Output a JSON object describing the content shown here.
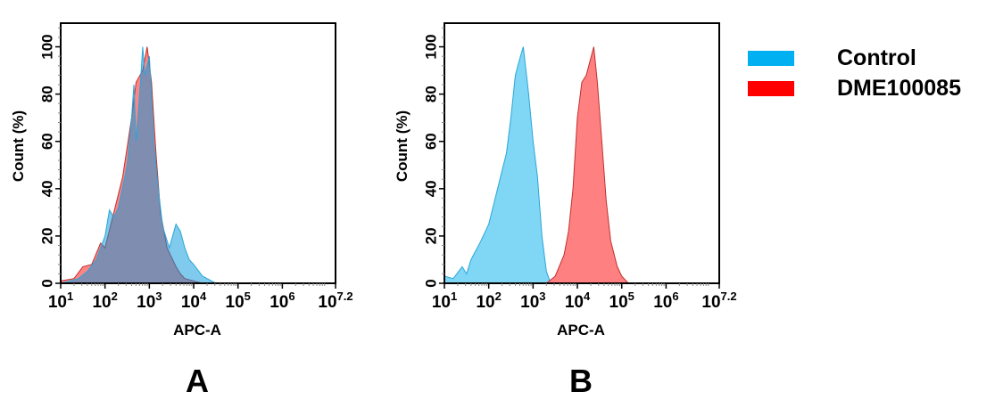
{
  "legend": [
    {
      "label": "Control",
      "color": "#00b0f0"
    },
    {
      "label": "DME100085",
      "color": "#ff0000"
    }
  ],
  "chart_data": [
    {
      "type": "area",
      "panel_label": "A",
      "xlabel": "APC-A",
      "ylabel": "Count  (%)",
      "xscale": "log10",
      "xlim_log10": [
        1,
        7.2
      ],
      "ylim": [
        0,
        110
      ],
      "yticks": [
        "0",
        "20",
        "40",
        "60",
        "80",
        "100"
      ],
      "xticks": [
        {
          "base": "10",
          "exp": "1"
        },
        {
          "base": "10",
          "exp": "2"
        },
        {
          "base": "10",
          "exp": "3"
        },
        {
          "base": "10",
          "exp": "4"
        },
        {
          "base": "10",
          "exp": "5"
        },
        {
          "base": "10",
          "exp": "6"
        },
        {
          "base": "10",
          "exp": "7.2"
        }
      ],
      "series": [
        {
          "name": "DME100085",
          "color": "#ff8080",
          "x_log10": [
            1.0,
            1.3,
            1.5,
            1.7,
            1.9,
            2.0,
            2.2,
            2.4,
            2.6,
            2.7,
            2.85,
            2.95,
            3.05,
            3.15,
            3.25,
            3.4,
            3.6,
            3.7,
            3.8,
            4.0,
            4.2
          ],
          "y": [
            1,
            2,
            7,
            8,
            17,
            15,
            30,
            45,
            70,
            85,
            90,
            100,
            85,
            55,
            30,
            15,
            7,
            4,
            2,
            1,
            0
          ]
        },
        {
          "name": "Control",
          "color": "#00b0f0",
          "x_log10": [
            1.0,
            1.2,
            1.4,
            1.6,
            1.8,
            2.0,
            2.1,
            2.2,
            2.3,
            2.5,
            2.6,
            2.65,
            2.7,
            2.8,
            2.85,
            2.9,
            3.0,
            3.1,
            3.2,
            3.3,
            3.45,
            3.6,
            3.7,
            3.8,
            3.9,
            4.0,
            4.2,
            4.4,
            4.5
          ],
          "y": [
            0,
            1,
            2,
            5,
            10,
            20,
            31,
            28,
            32,
            50,
            70,
            84,
            60,
            85,
            100,
            88,
            96,
            60,
            40,
            24,
            15,
            25,
            22,
            15,
            10,
            8,
            3,
            1,
            0
          ]
        }
      ]
    },
    {
      "type": "area",
      "panel_label": "B",
      "xlabel": "APC-A",
      "ylabel": "Count  (%)",
      "xscale": "log10",
      "xlim_log10": [
        1,
        7.2
      ],
      "ylim": [
        0,
        110
      ],
      "yticks": [
        "0",
        "20",
        "40",
        "60",
        "80",
        "100"
      ],
      "xticks": [
        {
          "base": "10",
          "exp": "1"
        },
        {
          "base": "10",
          "exp": "2"
        },
        {
          "base": "10",
          "exp": "3"
        },
        {
          "base": "10",
          "exp": "4"
        },
        {
          "base": "10",
          "exp": "5"
        },
        {
          "base": "10",
          "exp": "6"
        },
        {
          "base": "10",
          "exp": "7.2"
        }
      ],
      "series": [
        {
          "name": "Control",
          "color": "#00b0f0",
          "x_log10": [
            1.0,
            1.2,
            1.4,
            1.5,
            1.6,
            1.8,
            2.0,
            2.2,
            2.4,
            2.5,
            2.6,
            2.7,
            2.78,
            2.9,
            3.0,
            3.1,
            3.2,
            3.3,
            3.4
          ],
          "y": [
            3,
            2,
            7,
            4,
            10,
            17,
            25,
            40,
            55,
            70,
            88,
            95,
            100,
            80,
            60,
            45,
            20,
            5,
            0
          ]
        },
        {
          "name": "DME100085",
          "color": "#ff8080",
          "x_log10": [
            3.3,
            3.5,
            3.7,
            3.8,
            3.9,
            4.0,
            4.1,
            4.2,
            4.3,
            4.37,
            4.45,
            4.55,
            4.65,
            4.75,
            4.9,
            5.0,
            5.15
          ],
          "y": [
            0,
            3,
            12,
            22,
            40,
            70,
            85,
            88,
            95,
            100,
            85,
            60,
            35,
            18,
            7,
            3,
            0
          ]
        }
      ]
    }
  ]
}
